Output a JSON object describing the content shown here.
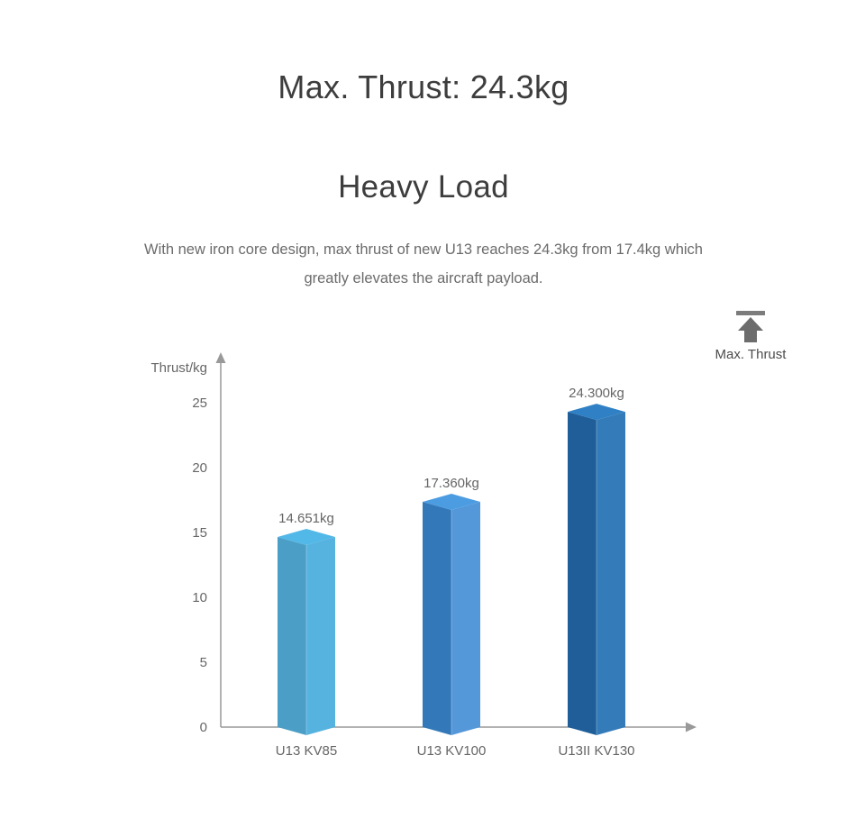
{
  "page": {
    "title": "Max. Thrust: 24.3kg",
    "subtitle": "Heavy Load",
    "description_lines": [
      "With new iron core design, max thrust of new U13 reaches 24.3kg from 17.4kg which",
      "greatly elevates the aircraft payload."
    ]
  },
  "legend": {
    "label": "Max. Thrust",
    "icon": "up-arrow-with-bar-icon",
    "icon_bar_color": "#7c7c7c",
    "icon_arrow_color": "#6c6c6c"
  },
  "chart_data": {
    "type": "bar",
    "title": "Max. Thrust: 24.3kg",
    "xlabel": "",
    "ylabel": "Thrust/kg",
    "categories": [
      "U13 KV85",
      "U13 KV100",
      "U13II KV130"
    ],
    "values": [
      14.651,
      17.36,
      24.3
    ],
    "value_labels": [
      "14.651kg",
      "17.360kg",
      "24.300kg"
    ],
    "yticks": [
      0,
      5,
      10,
      15,
      20,
      25
    ],
    "ylim": [
      0,
      28.9
    ],
    "grid": false,
    "legend_position": "top-right",
    "bar_style": "3d-box",
    "bar_colors": [
      {
        "left": "#4B9FC6",
        "right": "#56B2DF",
        "top": "#52B8E8"
      },
      {
        "left": "#3379B9",
        "right": "#5598DA",
        "top": "#4C9CE2"
      },
      {
        "left": "#1F5E99",
        "right": "#337CB9",
        "top": "#2F80C4"
      }
    ],
    "axis_color": "#999999",
    "text_color": "#666666"
  }
}
